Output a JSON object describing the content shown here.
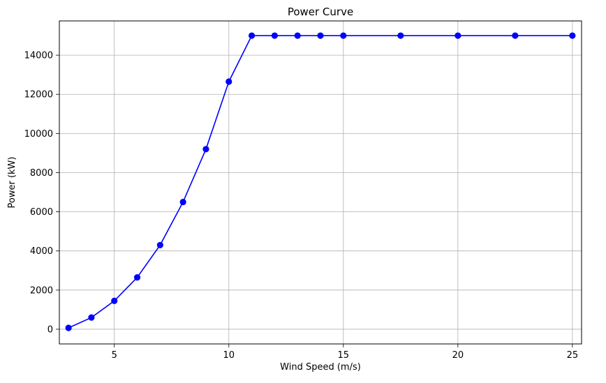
{
  "chart_data": {
    "type": "line",
    "title": "Power Curve",
    "xlabel": "Wind Speed (m/s)",
    "ylabel": "Power (kW)",
    "xlim": [
      2.6,
      25.4
    ],
    "ylim": [
      -750,
      15750
    ],
    "xticks": [
      5,
      10,
      15,
      20,
      25
    ],
    "yticks": [
      0,
      2000,
      4000,
      6000,
      8000,
      10000,
      12000,
      14000
    ],
    "grid": true,
    "series": [
      {
        "color": "#0000ff",
        "marker": "circle",
        "x": [
          3,
          4,
          5,
          6,
          7,
          8,
          9,
          10,
          11,
          12,
          13,
          14,
          15,
          17.5,
          20,
          22.5,
          25
        ],
        "y": [
          70,
          600,
          1450,
          2650,
          4300,
          6500,
          9200,
          12650,
          15000,
          15000,
          15000,
          15000,
          15000,
          15000,
          15000,
          15000,
          15000
        ]
      }
    ]
  }
}
